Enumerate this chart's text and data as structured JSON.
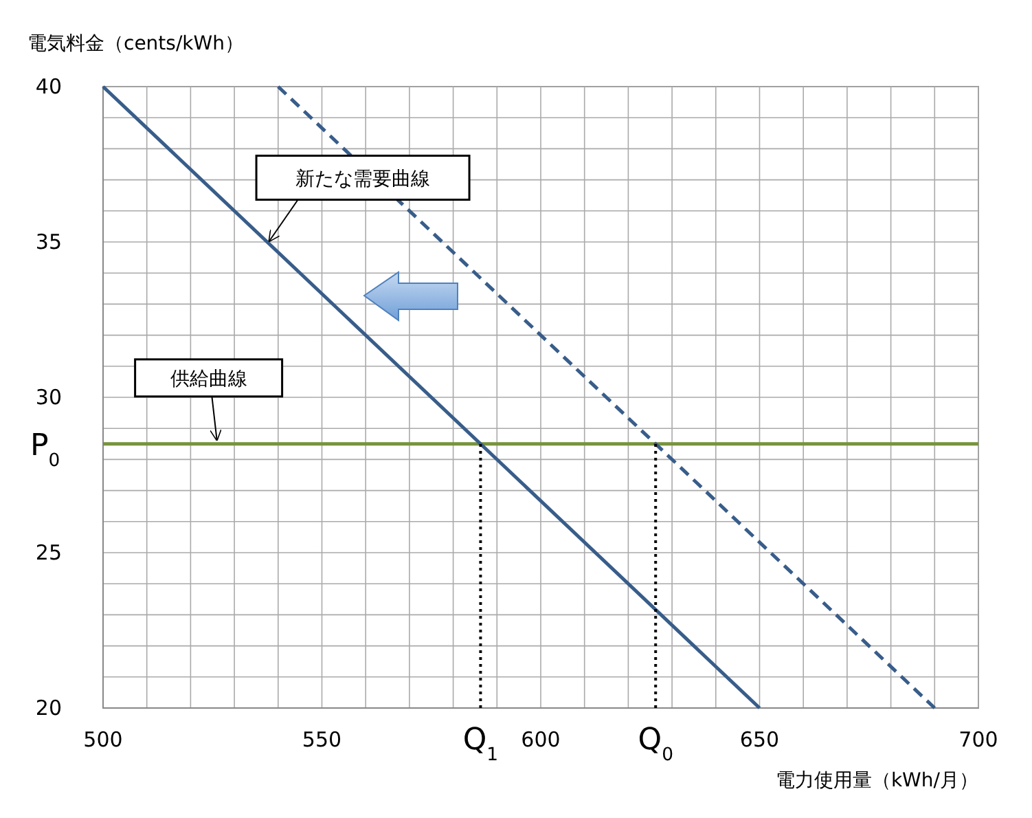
{
  "chart_data": {
    "type": "line",
    "xlabel": "電力使用量（kWh/月）",
    "ylabel": "電気料金（cents/kWh）",
    "xlim": [
      500,
      700
    ],
    "ylim": [
      20,
      40
    ],
    "xticks": [
      500,
      {
        "value": 510,
        "label": null
      },
      {
        "value": 520,
        "label": null
      },
      {
        "value": 530,
        "label": null
      },
      {
        "value": 540,
        "label": null
      },
      550,
      {
        "value": 560,
        "label": null
      },
      {
        "value": 570,
        "label": null
      },
      {
        "value": 580,
        "label": null
      },
      {
        "value": 590,
        "label": null
      },
      600,
      {
        "value": 610,
        "label": null
      },
      {
        "value": 620,
        "label": null
      },
      {
        "value": 630,
        "label": null
      },
      {
        "value": 640,
        "label": null
      },
      650,
      {
        "value": 660,
        "label": null
      },
      {
        "value": 670,
        "label": null
      },
      {
        "value": 680,
        "label": null
      },
      {
        "value": 690,
        "label": null
      },
      700
    ],
    "yticks": [
      20,
      {
        "value": 21,
        "label": null
      },
      {
        "value": 22,
        "label": null
      },
      {
        "value": 23,
        "label": null
      },
      {
        "value": 24,
        "label": null
      },
      25,
      {
        "value": 26,
        "label": null
      },
      {
        "value": 27,
        "label": null
      },
      {
        "value": 28,
        "label": null
      },
      {
        "value": 29,
        "label": null
      },
      30,
      {
        "value": 31,
        "label": null
      },
      {
        "value": 32,
        "label": null
      },
      {
        "value": 33,
        "label": null
      },
      {
        "value": 34,
        "label": null
      },
      35,
      {
        "value": 36,
        "label": null
      },
      {
        "value": 37,
        "label": null
      },
      {
        "value": 38,
        "label": null
      },
      {
        "value": 39,
        "label": null
      },
      40
    ],
    "grid": true,
    "series": [
      {
        "color": "#385d8a",
        "x": [
          500,
          650
        ],
        "values": [
          40,
          20
        ],
        "line_style": "solid"
      },
      {
        "color": "#385d8a",
        "x": [
          540,
          690
        ],
        "values": [
          40,
          20
        ],
        "line_style": "dashed"
      },
      {
        "color": "#000000",
        "x": [
          586.25,
          586.25
        ],
        "values": [
          20,
          28.5
        ],
        "line_style": "dotted"
      },
      {
        "color": "#000000",
        "x": [
          626.25,
          626.25
        ],
        "values": [
          20,
          28.5
        ],
        "line_style": "dotted"
      }
    ],
    "ref_lines": [
      {
        "axis": "y",
        "value": 28.5,
        "label": "P$_{0}$",
        "color": "#77933c"
      }
    ],
    "annotations": [
      {
        "text": "新たな需要曲線",
        "x": 538,
        "y": 34.9
      },
      {
        "text": "供給曲線",
        "x": 526,
        "y": 28.5
      },
      {
        "text": "Q$_{1}$",
        "x": 586.25,
        "y": 20
      },
      {
        "text": "Q$_{0}$",
        "x": 626.25,
        "y": 20
      }
    ]
  }
}
